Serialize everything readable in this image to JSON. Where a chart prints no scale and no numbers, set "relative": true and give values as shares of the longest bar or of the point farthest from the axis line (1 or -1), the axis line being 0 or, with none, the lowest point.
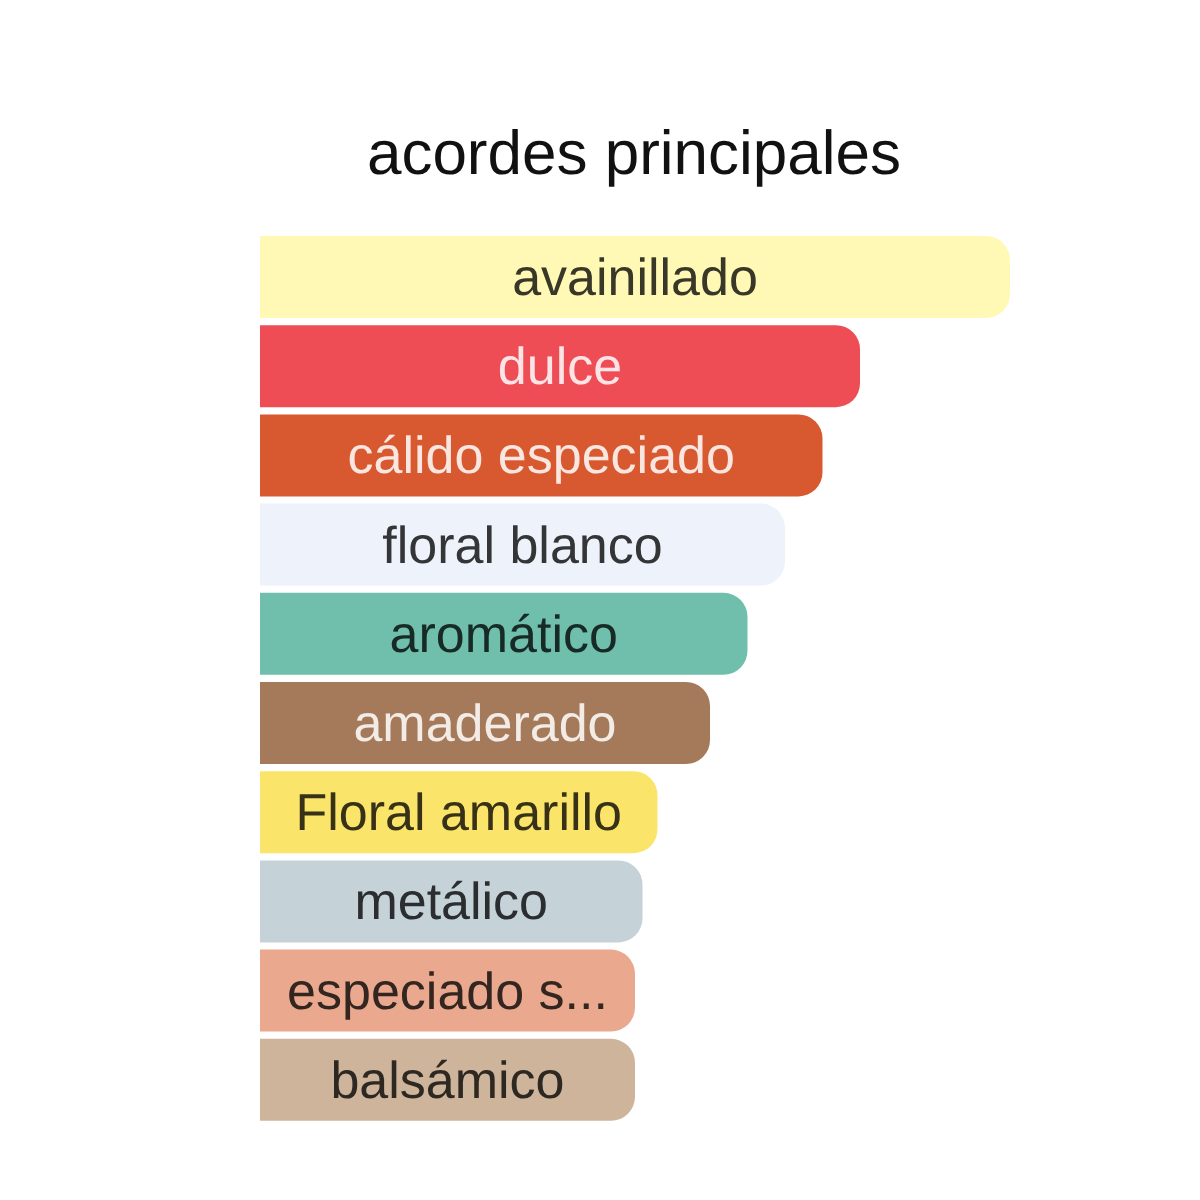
{
  "chart_data": {
    "type": "bar",
    "orientation": "horizontal",
    "relative": true,
    "title": "acordes principales",
    "categories": [
      "avainillado",
      "dulce",
      "cálido especiado",
      "floral blanco",
      "aromático",
      "amaderado",
      "Floral amarillo",
      "metálico",
      "especiado s...",
      "balsámico"
    ],
    "values": [
      1,
      0.8,
      0.75,
      0.7,
      0.65,
      0.6,
      0.53,
      0.51,
      0.5,
      0.5
    ],
    "colors": [
      "#fff9b5",
      "#ee4d55",
      "#d8582f",
      "#eef2fb",
      "#6fbfac",
      "#a57a5a",
      "#fbe46a",
      "#c5d2d8",
      "#eaa88e",
      "#cdb49a"
    ]
  }
}
